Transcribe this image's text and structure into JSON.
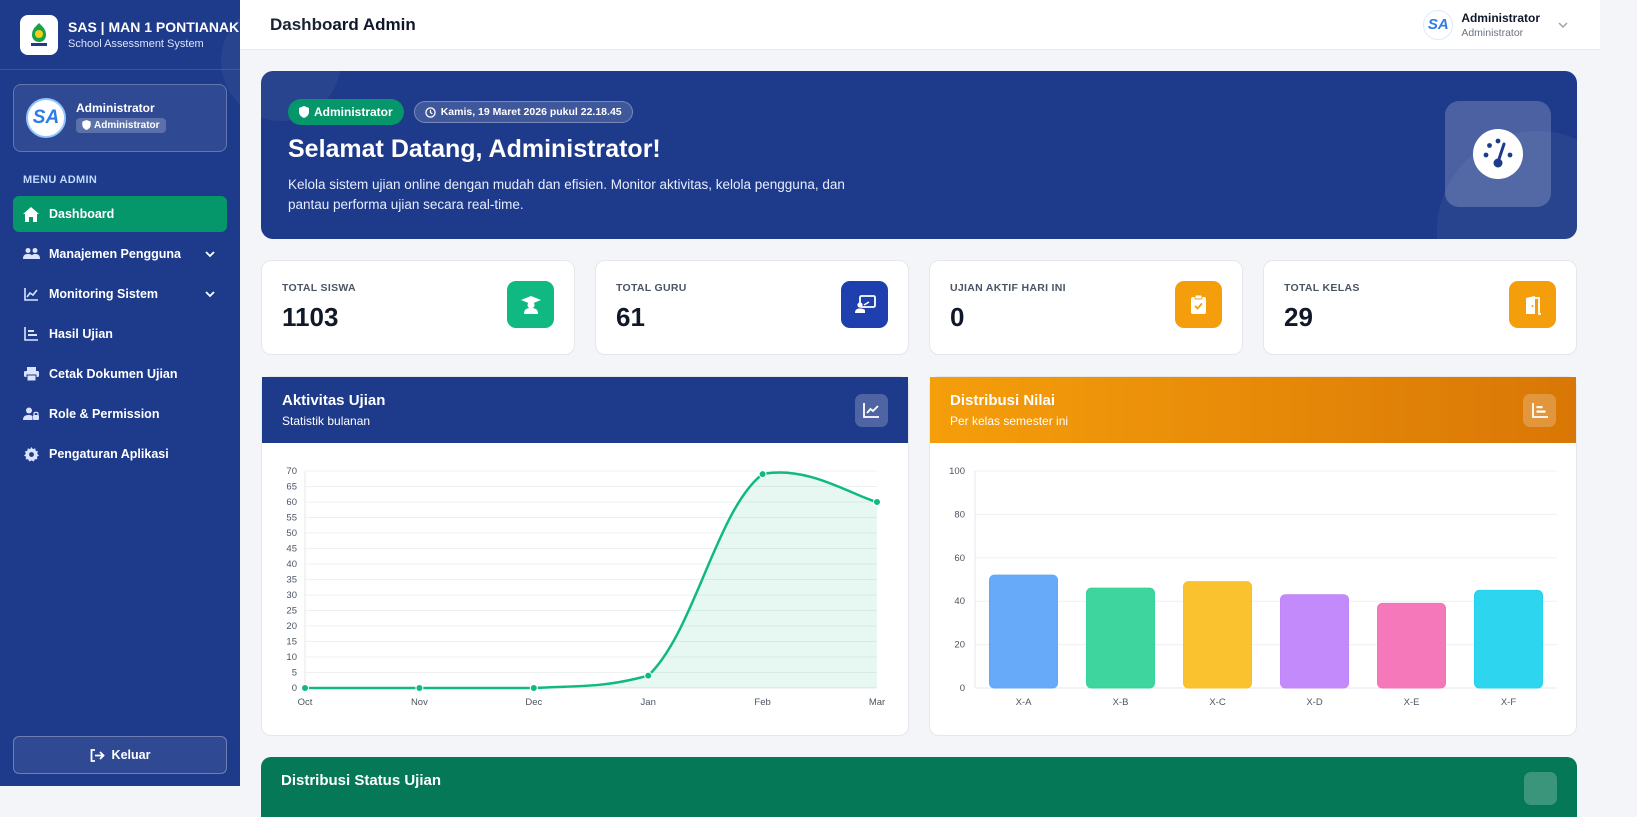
{
  "app": {
    "title": "SAS | MAN 1 PONTIANAK",
    "subtitle": "School Assessment System"
  },
  "sidebar": {
    "profile": {
      "avatar_text": "SA",
      "name": "Administrator",
      "role": "Administrator"
    },
    "menu_heading": "MENU ADMIN",
    "items": [
      {
        "label": "Dashboard",
        "icon": "home-icon",
        "active": true
      },
      {
        "label": "Manajemen Pengguna",
        "icon": "users-icon",
        "has_children": true
      },
      {
        "label": "Monitoring Sistem",
        "icon": "chart-line-icon",
        "has_children": true
      },
      {
        "label": "Hasil Ujian",
        "icon": "bar-list-icon"
      },
      {
        "label": "Cetak Dokumen Ujian",
        "icon": "printer-icon"
      },
      {
        "label": "Role & Permission",
        "icon": "user-lock-icon"
      },
      {
        "label": "Pengaturan Aplikasi",
        "icon": "gear-icon"
      }
    ],
    "logout_label": "Keluar"
  },
  "topbar": {
    "title": "Dashboard Admin",
    "user_name": "Administrator",
    "user_role": "Administrator",
    "avatar_text": "SA"
  },
  "hero": {
    "badge": "Administrator",
    "datetime": "Kamis, 19 Maret 2026 pukul 22.18.45",
    "title": "Selamat Datang, Administrator!",
    "description": "Kelola sistem ujian online dengan mudah dan efisien. Monitor aktivitas, kelola pengguna, dan pantau performa ujian secara real-time."
  },
  "stats": [
    {
      "label": "TOTAL SISWA",
      "value": "1103",
      "color": "#10b981",
      "icon": "graduate-icon"
    },
    {
      "label": "TOTAL GURU",
      "value": "61",
      "color": "#1e40af",
      "icon": "teacher-icon"
    },
    {
      "label": "UJIAN AKTIF HARI INI",
      "value": "0",
      "color": "#f59e0b",
      "icon": "clipboard-check-icon"
    },
    {
      "label": "TOTAL KELAS",
      "value": "29",
      "color": "#f59e0b",
      "icon": "door-icon"
    }
  ],
  "activity_card": {
    "title": "Aktivitas Ujian",
    "subtitle": "Statistik bulanan"
  },
  "grades_card": {
    "title": "Distribusi Nilai",
    "subtitle": "Per kelas semester ini"
  },
  "status_card": {
    "title": "Distribusi Status Ujian"
  },
  "chart_data": [
    {
      "type": "line",
      "title": "Aktivitas Ujian",
      "x": [
        "Oct",
        "Nov",
        "Dec",
        "Jan",
        "Feb",
        "Mar"
      ],
      "values": [
        0,
        0,
        0,
        4,
        69,
        60
      ],
      "ylim": [
        0,
        70
      ],
      "yticks": [
        0,
        5,
        10,
        15,
        20,
        25,
        30,
        35,
        40,
        45,
        50,
        55,
        60,
        65,
        70
      ],
      "color": "#10b981",
      "grid": true
    },
    {
      "type": "bar",
      "title": "Distribusi Nilai",
      "categories": [
        "X-A",
        "X-B",
        "X-C",
        "X-D",
        "X-E",
        "X-F"
      ],
      "values": [
        52,
        46,
        49,
        43,
        39,
        45
      ],
      "ylim": [
        0,
        100
      ],
      "yticks": [
        0,
        20,
        40,
        60,
        80,
        100
      ],
      "colors": [
        "#60a5fa",
        "#34d399",
        "#fbbf24",
        "#c084fc",
        "#f472b6",
        "#22d3ee"
      ],
      "grid": true
    }
  ]
}
